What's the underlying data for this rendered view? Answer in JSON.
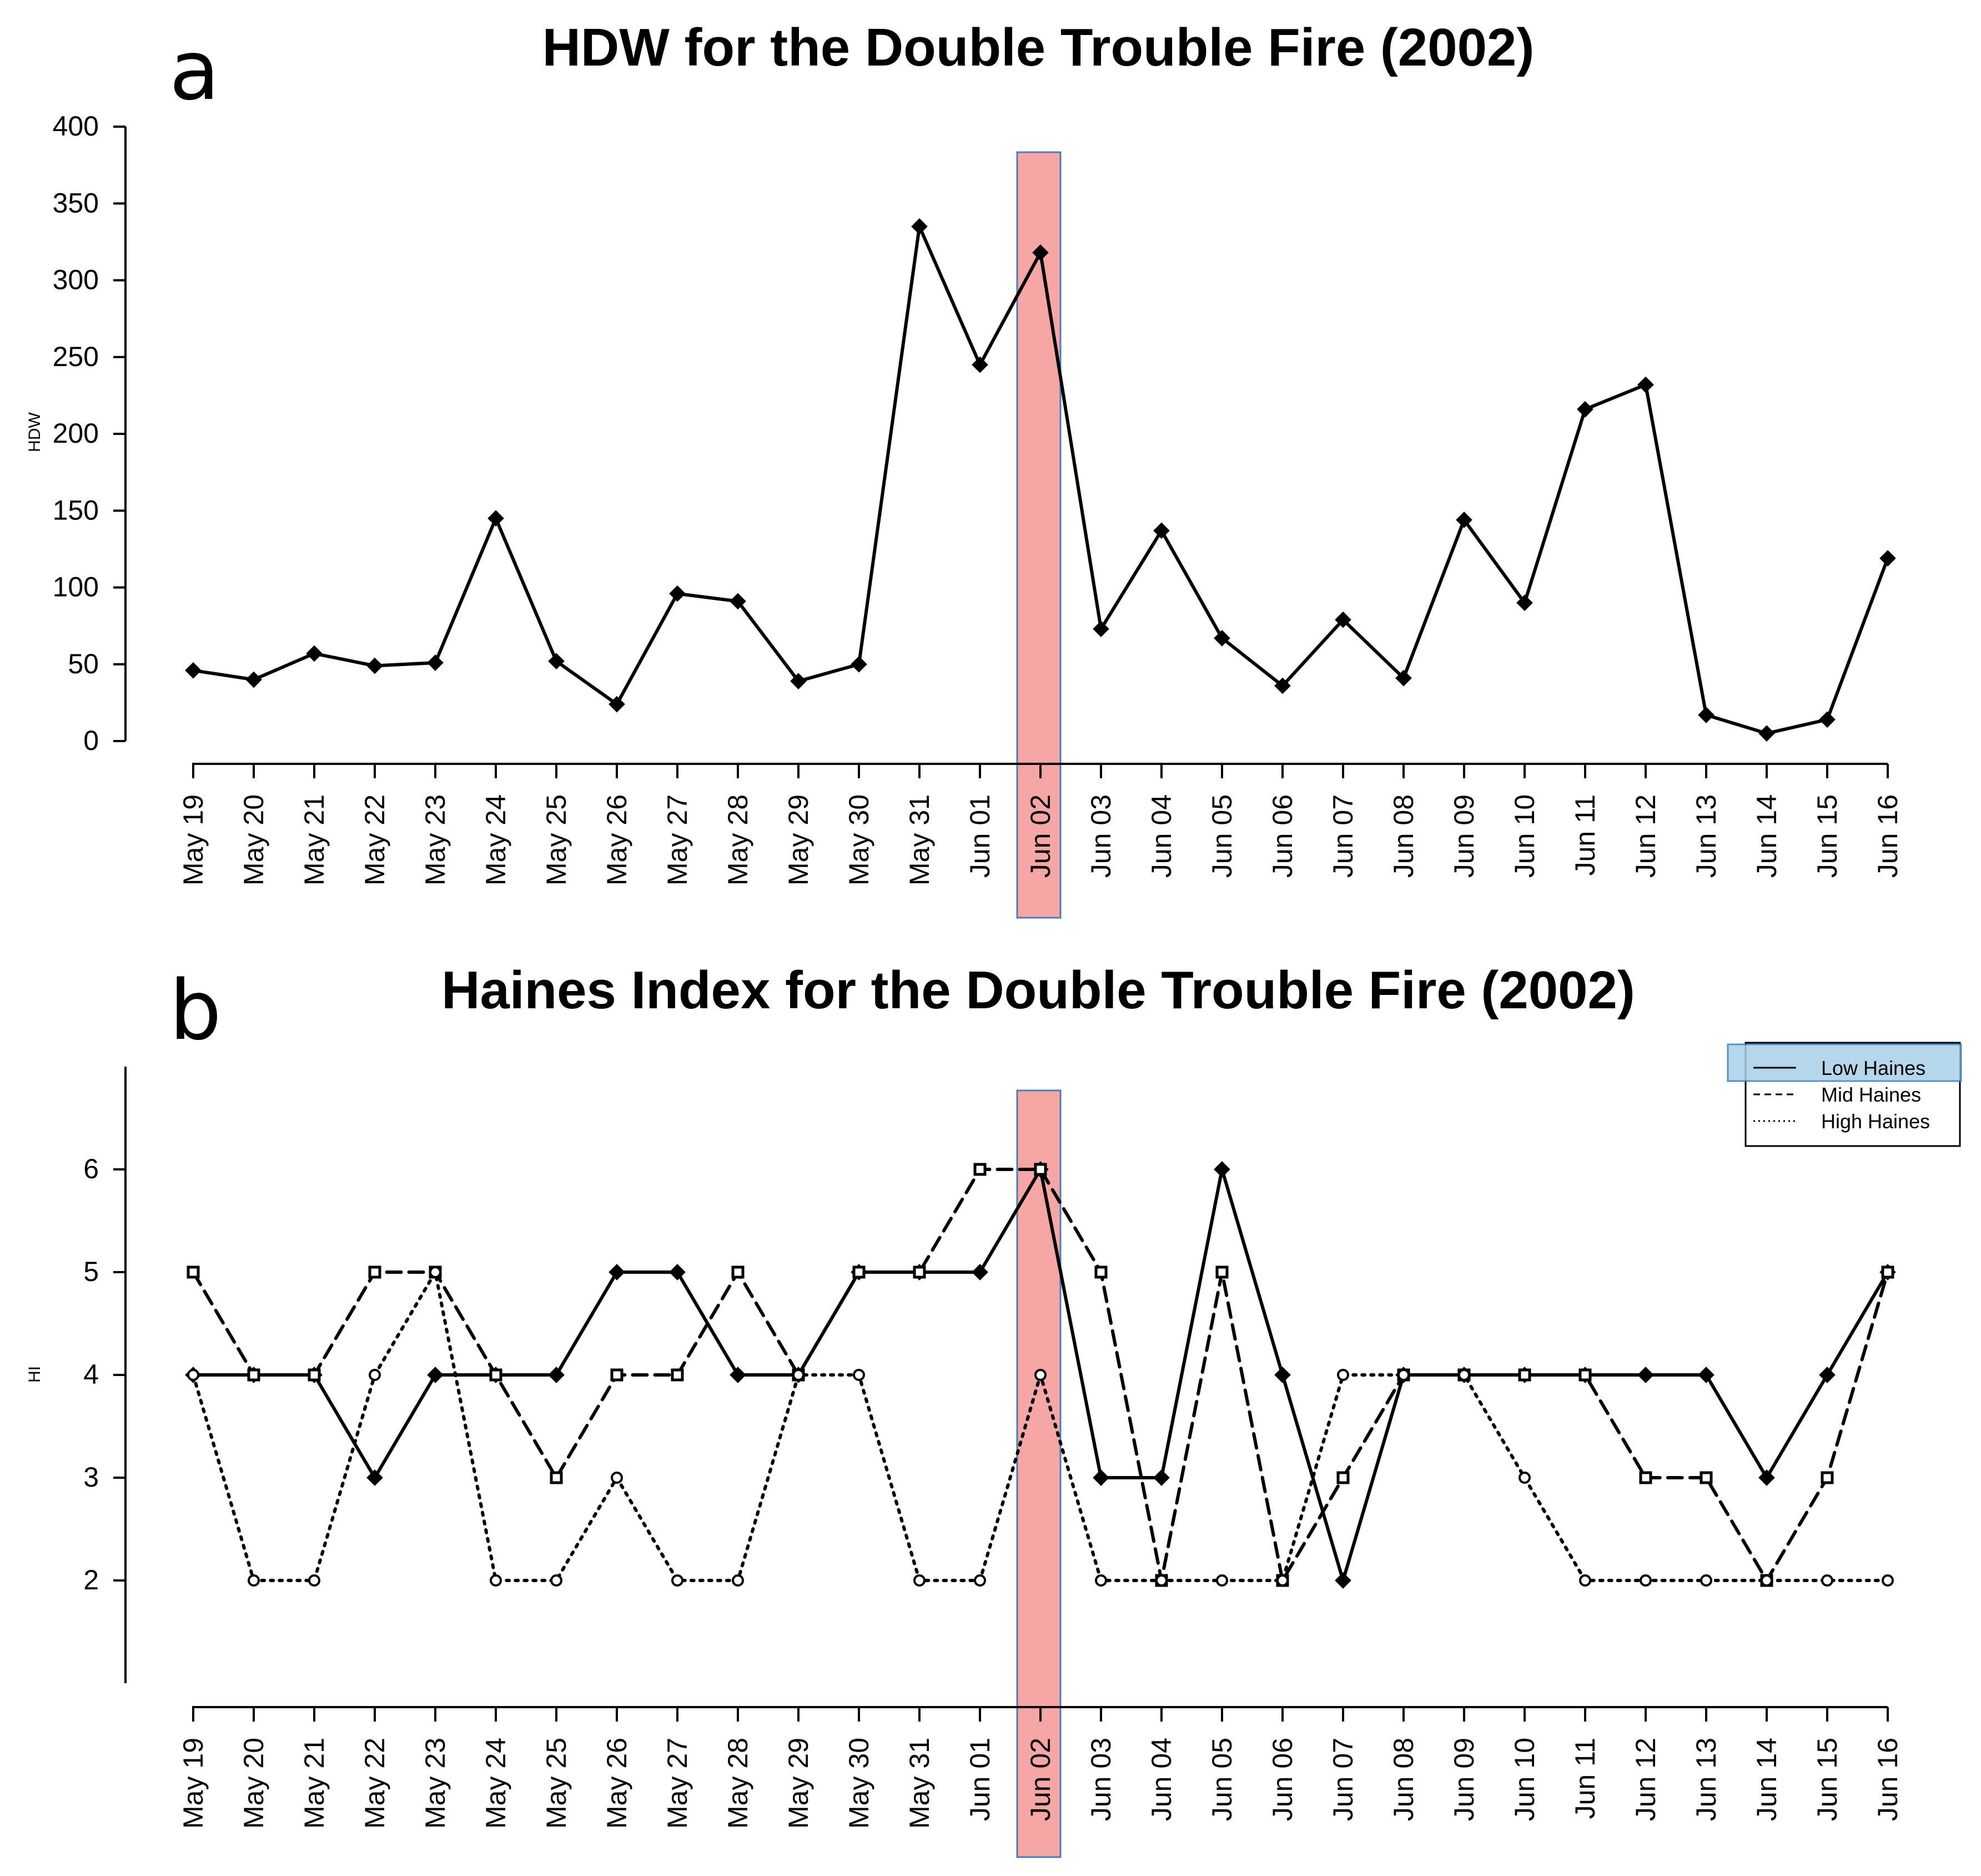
{
  "chart_data": [
    {
      "type": "line",
      "panel_letter": "a",
      "title": "HDW for the Double Trouble Fire (2002)",
      "xlabel": "",
      "ylabel": "HDW",
      "ylim": [
        0,
        400
      ],
      "yticks": [
        0,
        50,
        100,
        150,
        200,
        250,
        300,
        350,
        400
      ],
      "grid": false,
      "categories": [
        "May 19",
        "May 20",
        "May 21",
        "May 22",
        "May 23",
        "May 24",
        "May 25",
        "May 26",
        "May 27",
        "May 28",
        "May 29",
        "May 30",
        "May 31",
        "Jun 01",
        "Jun 02",
        "Jun 03",
        "Jun 04",
        "Jun 05",
        "Jun 06",
        "Jun 07",
        "Jun 08",
        "Jun 09",
        "Jun 10",
        "Jun 11",
        "Jun 12",
        "Jun 13",
        "Jun 14",
        "Jun 15",
        "Jun 16"
      ],
      "series": [
        {
          "name": "HDW",
          "line_style": "solid",
          "marker": "diamond",
          "values": [
            46,
            40,
            57,
            49,
            51,
            145,
            52,
            24,
            96,
            91,
            39,
            50,
            335,
            245,
            318,
            73,
            137,
            67,
            36,
            79,
            41,
            144,
            90,
            216,
            232,
            17,
            5,
            14,
            119
          ]
        }
      ],
      "highlight": {
        "category": "Jun 02",
        "color": "#f7a6a6",
        "border": "#4a7fb5"
      }
    },
    {
      "type": "line",
      "panel_letter": "b",
      "title": "Haines Index for the Double Trouble Fire (2002)",
      "xlabel": "",
      "ylabel": "HI",
      "ylim": [
        1,
        7
      ],
      "yticks": [
        2,
        3,
        4,
        5,
        6
      ],
      "grid": false,
      "categories": [
        "May 19",
        "May 20",
        "May 21",
        "May 22",
        "May 23",
        "May 24",
        "May 25",
        "May 26",
        "May 27",
        "May 28",
        "May 29",
        "May 30",
        "May 31",
        "Jun 01",
        "Jun 02",
        "Jun 03",
        "Jun 04",
        "Jun 05",
        "Jun 06",
        "Jun 07",
        "Jun 08",
        "Jun 09",
        "Jun 10",
        "Jun 11",
        "Jun 12",
        "Jun 13",
        "Jun 14",
        "Jun 15",
        "Jun 16"
      ],
      "series": [
        {
          "name": "Low Haines",
          "line_style": "solid",
          "marker": "diamond",
          "values": [
            4,
            4,
            4,
            3,
            4,
            4,
            4,
            5,
            5,
            4,
            4,
            5,
            5,
            5,
            6,
            3,
            3,
            6,
            4,
            2,
            4,
            4,
            4,
            4,
            4,
            4,
            3,
            4,
            5
          ]
        },
        {
          "name": "Mid Haines",
          "line_style": "dashed",
          "marker": "square",
          "values": [
            5,
            4,
            4,
            5,
            5,
            4,
            3,
            4,
            4,
            5,
            4,
            5,
            5,
            6,
            6,
            5,
            2,
            5,
            2,
            3,
            4,
            4,
            4,
            4,
            3,
            3,
            2,
            3,
            5
          ]
        },
        {
          "name": "High Haines",
          "line_style": "dotted",
          "marker": "circle",
          "values": [
            4,
            2,
            2,
            4,
            5,
            2,
            2,
            3,
            2,
            2,
            4,
            4,
            2,
            2,
            4,
            2,
            2,
            2,
            2,
            4,
            4,
            4,
            3,
            2,
            2,
            2,
            2,
            2,
            2
          ]
        }
      ],
      "legend": {
        "position": "top-right",
        "highlighted_entry": "Low Haines",
        "highlight_color": "#a9cfe8"
      },
      "highlight": {
        "category": "Jun 02",
        "color": "#f7a6a6",
        "border": "#4a7fb5"
      }
    }
  ]
}
